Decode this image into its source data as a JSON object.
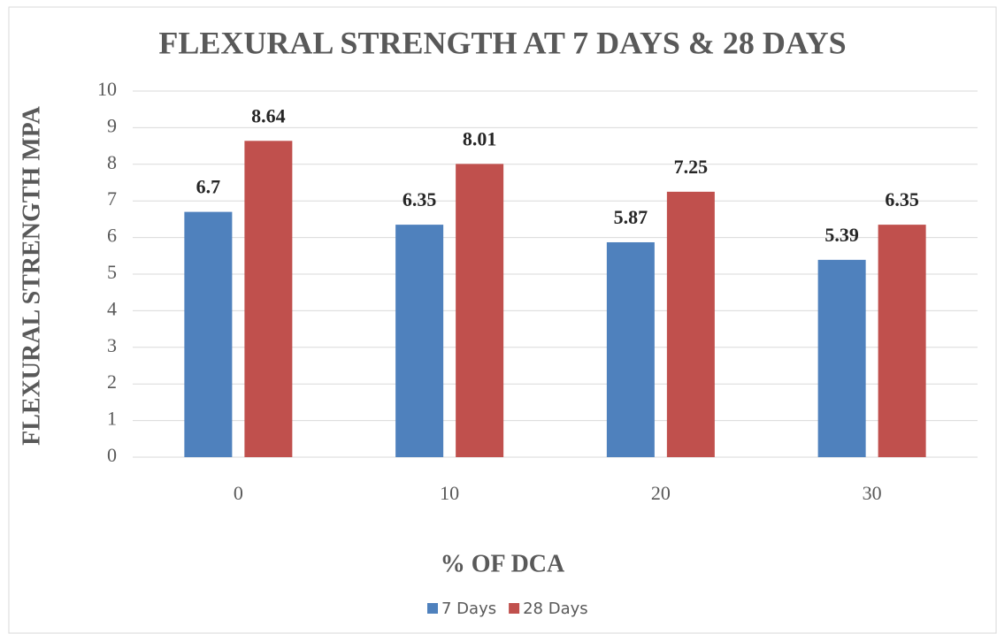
{
  "chart_data": {
    "type": "bar",
    "title": "FLEXURAL STRENGTH AT 7 DAYS & 28 DAYS",
    "x_label": "% OF DCA",
    "y_label": "FLEXURAL STRENGTH MPA",
    "categories": [
      "0",
      "10",
      "20",
      "30"
    ],
    "series": [
      {
        "name": "7 Days",
        "color": "#4f81bd",
        "values": [
          6.7,
          6.35,
          5.87,
          5.39
        ]
      },
      {
        "name": "28 Days",
        "color": "#c0504d",
        "values": [
          8.64,
          8.01,
          7.25,
          6.35
        ]
      }
    ],
    "ylim": [
      0,
      10
    ],
    "yticks": [
      0,
      1,
      2,
      3,
      4,
      5,
      6,
      7,
      8,
      9,
      10
    ],
    "grid": true,
    "legend": "bottom"
  }
}
